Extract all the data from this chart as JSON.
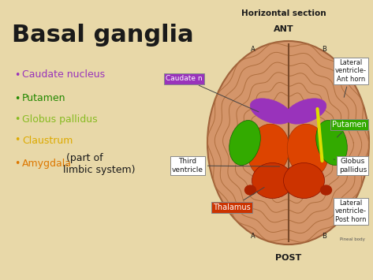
{
  "background_color": "#e8d8a8",
  "title": "Basal ganglia",
  "title_fontsize": 22,
  "title_color": "#1a1a1a",
  "section_label": "Horizontal section",
  "ant_label": "ANT",
  "post_label": "POST",
  "bullet_items": [
    {
      "text": "Caudate nucleus",
      "color": "#9933bb",
      "dot_color": "#9933bb"
    },
    {
      "text": "Putamen",
      "color": "#228800",
      "dot_color": "#228800"
    },
    {
      "text": "Globus pallidus",
      "color": "#88bb22",
      "dot_color": "#88bb22"
    },
    {
      "text": "Claustrum",
      "color": "#ddaa00",
      "dot_color": "#ddaa00"
    },
    {
      "text": "Amygdala",
      "color": "#dd7700",
      "dot_color": "#dd7700"
    }
  ],
  "amygdala_suffix": " (part of\nlimbic system)",
  "brain_color": "#d4956a",
  "brain_border": "#a0623a",
  "gyri_color": "#b07040",
  "midline_color": "#7a4a2a",
  "caudate_color": "#9933bb",
  "putamen_color": "#33aa00",
  "globus_color": "#dd4400",
  "thalamus_color": "#cc3300",
  "internal_capsule_color": "#dddd00",
  "small_blob_color": "#aa2200",
  "label_border": "#888888",
  "labels": [
    {
      "text": "Caudate n",
      "bg": "#9933bb",
      "fg": "white",
      "side": "left"
    },
    {
      "text": "Lateral\nventricle-\nAnt horn",
      "bg": "white",
      "fg": "#1a1a1a",
      "side": "right"
    },
    {
      "text": "Putamen",
      "bg": "#33aa00",
      "fg": "white",
      "side": "right"
    },
    {
      "text": "Globus\npallidus",
      "bg": "white",
      "fg": "#1a1a1a",
      "side": "right"
    },
    {
      "text": "Third\nventricle",
      "bg": "white",
      "fg": "#1a1a1a",
      "side": "left"
    },
    {
      "text": "Thalamus",
      "bg": "#dd4400",
      "fg": "white",
      "side": "left"
    },
    {
      "text": "Lateral\nventricle-\nPost horn",
      "bg": "white",
      "fg": "#1a1a1a",
      "side": "right"
    }
  ]
}
